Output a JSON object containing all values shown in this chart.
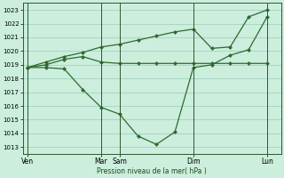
{
  "xlabel": "Pression niveau de la mer( hPa )",
  "bg_color": "#cceedd",
  "grid_color": "#99ccbb",
  "line_color": "#2d6b2d",
  "ylim": [
    1012.5,
    1023.5
  ],
  "yticks": [
    1013,
    1014,
    1015,
    1016,
    1017,
    1018,
    1019,
    1020,
    1021,
    1022,
    1023
  ],
  "xtick_labels": [
    "Ven",
    "Mar",
    "Sam",
    "Dim",
    "Lun"
  ],
  "xtick_x": [
    0,
    8,
    10,
    18,
    26
  ],
  "vline_x": [
    0,
    8,
    10,
    18,
    26
  ],
  "xlim": [
    -0.5,
    27.5
  ],
  "line1_x": [
    0,
    2,
    4,
    6,
    8,
    10,
    12,
    14,
    16,
    18,
    20,
    22,
    24,
    26
  ],
  "line1_y": [
    1018.8,
    1019.0,
    1019.4,
    1019.6,
    1019.2,
    1019.1,
    1019.1,
    1019.1,
    1019.1,
    1019.1,
    1019.1,
    1019.1,
    1019.1,
    1019.1
  ],
  "line2_x": [
    0,
    2,
    4,
    6,
    8,
    10,
    12,
    14,
    16,
    18,
    20,
    22,
    24,
    26
  ],
  "line2_y": [
    1018.8,
    1019.2,
    1019.6,
    1019.9,
    1020.3,
    1020.5,
    1020.8,
    1021.1,
    1021.4,
    1021.6,
    1020.2,
    1020.3,
    1022.5,
    1023.0
  ],
  "line3_x": [
    0,
    2,
    4,
    6,
    8,
    10,
    12,
    14,
    16,
    18,
    20,
    22,
    24,
    26
  ],
  "line3_y": [
    1018.8,
    1018.8,
    1018.7,
    1017.2,
    1015.9,
    1015.4,
    1013.8,
    1013.2,
    1014.1,
    1018.8,
    1019.0,
    1019.7,
    1020.1,
    1022.5
  ],
  "figsize": [
    3.2,
    2.0
  ],
  "dpi": 100
}
